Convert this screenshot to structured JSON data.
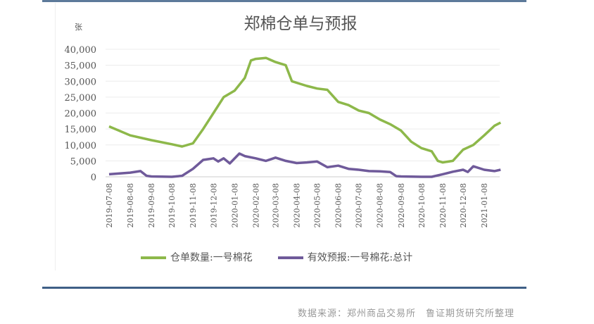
{
  "chart_data": {
    "type": "line",
    "title": "郑棉仓单与预报",
    "ylabel": "张",
    "ylim": [
      0,
      40000
    ],
    "yticks": [
      "0",
      "5,000",
      "10,000",
      "15,000",
      "20,000",
      "25,000",
      "30,000",
      "35,000",
      "40,000"
    ],
    "ytick_values": [
      0,
      5000,
      10000,
      15000,
      20000,
      25000,
      30000,
      35000,
      40000
    ],
    "xticks": [
      "2019-07-08",
      "2019-08-08",
      "2019-09-08",
      "2019-10-08",
      "2019-11-08",
      "2019-12-08",
      "2020-01-08",
      "2020-02-08",
      "2020-03-08",
      "2020-04-08",
      "2020-05-08",
      "2020-06-08",
      "2020-07-08",
      "2020-08-08",
      "2020-09-08",
      "2020-10-08",
      "2020-11-08",
      "2020-12-08",
      "2021-01-08"
    ],
    "xlim": [
      "2019-07-08",
      "2021-02-01"
    ],
    "grid": true,
    "legend_position": "bottom",
    "series": [
      {
        "name": "仓单数量:一号棉花",
        "color": "#8db84a",
        "x": [
          "2019-07-08",
          "2019-08-08",
          "2019-09-08",
          "2019-10-08",
          "2019-10-23",
          "2019-11-08",
          "2019-11-23",
          "2019-12-08",
          "2019-12-23",
          "2020-01-08",
          "2020-01-23",
          "2020-02-01",
          "2020-02-08",
          "2020-02-23",
          "2020-03-08",
          "2020-03-23",
          "2020-04-01",
          "2020-04-08",
          "2020-04-23",
          "2020-05-08",
          "2020-05-23",
          "2020-06-08",
          "2020-06-23",
          "2020-07-08",
          "2020-07-23",
          "2020-08-08",
          "2020-08-23",
          "2020-09-08",
          "2020-09-23",
          "2020-10-08",
          "2020-10-23",
          "2020-11-01",
          "2020-11-08",
          "2020-11-23",
          "2020-12-08",
          "2020-12-23",
          "2021-01-08",
          "2021-01-23",
          "2021-02-01"
        ],
        "values": [
          15800,
          13000,
          11500,
          10200,
          9500,
          10500,
          15000,
          20000,
          25000,
          27000,
          31000,
          36500,
          37000,
          37300,
          36000,
          35000,
          30000,
          29500,
          28500,
          27700,
          27300,
          23500,
          22500,
          20800,
          20000,
          18000,
          16500,
          14500,
          11000,
          9000,
          8000,
          5000,
          4500,
          5000,
          8500,
          10000,
          13000,
          16000,
          17000
        ]
      },
      {
        "name": "有效预报:一号棉花:总计",
        "color": "#6f5a9a",
        "x": [
          "2019-07-08",
          "2019-08-08",
          "2019-08-23",
          "2019-09-01",
          "2019-09-08",
          "2019-10-08",
          "2019-10-23",
          "2019-11-08",
          "2019-11-23",
          "2019-12-08",
          "2019-12-15",
          "2019-12-23",
          "2020-01-01",
          "2020-01-15",
          "2020-01-23",
          "2020-02-08",
          "2020-02-23",
          "2020-03-08",
          "2020-03-23",
          "2020-04-08",
          "2020-04-23",
          "2020-05-08",
          "2020-05-23",
          "2020-06-08",
          "2020-06-23",
          "2020-07-08",
          "2020-07-23",
          "2020-08-08",
          "2020-08-23",
          "2020-09-01",
          "2020-09-08",
          "2020-10-08",
          "2020-10-23",
          "2020-11-08",
          "2020-11-23",
          "2020-12-08",
          "2020-12-15",
          "2020-12-23",
          "2021-01-08",
          "2021-01-23",
          "2021-02-01"
        ],
        "values": [
          800,
          1300,
          1800,
          300,
          100,
          0,
          300,
          2500,
          5300,
          5800,
          4800,
          5800,
          4200,
          7300,
          6500,
          5800,
          5000,
          6000,
          5000,
          4300,
          4500,
          4800,
          3000,
          3500,
          2500,
          2200,
          1800,
          1700,
          1500,
          200,
          100,
          0,
          0,
          800,
          1600,
          2200,
          1500,
          3300,
          2200,
          1800,
          2200
        ]
      }
    ]
  },
  "source_note": "数据来源：郑州商品交易所　鲁证期货研究所整理"
}
